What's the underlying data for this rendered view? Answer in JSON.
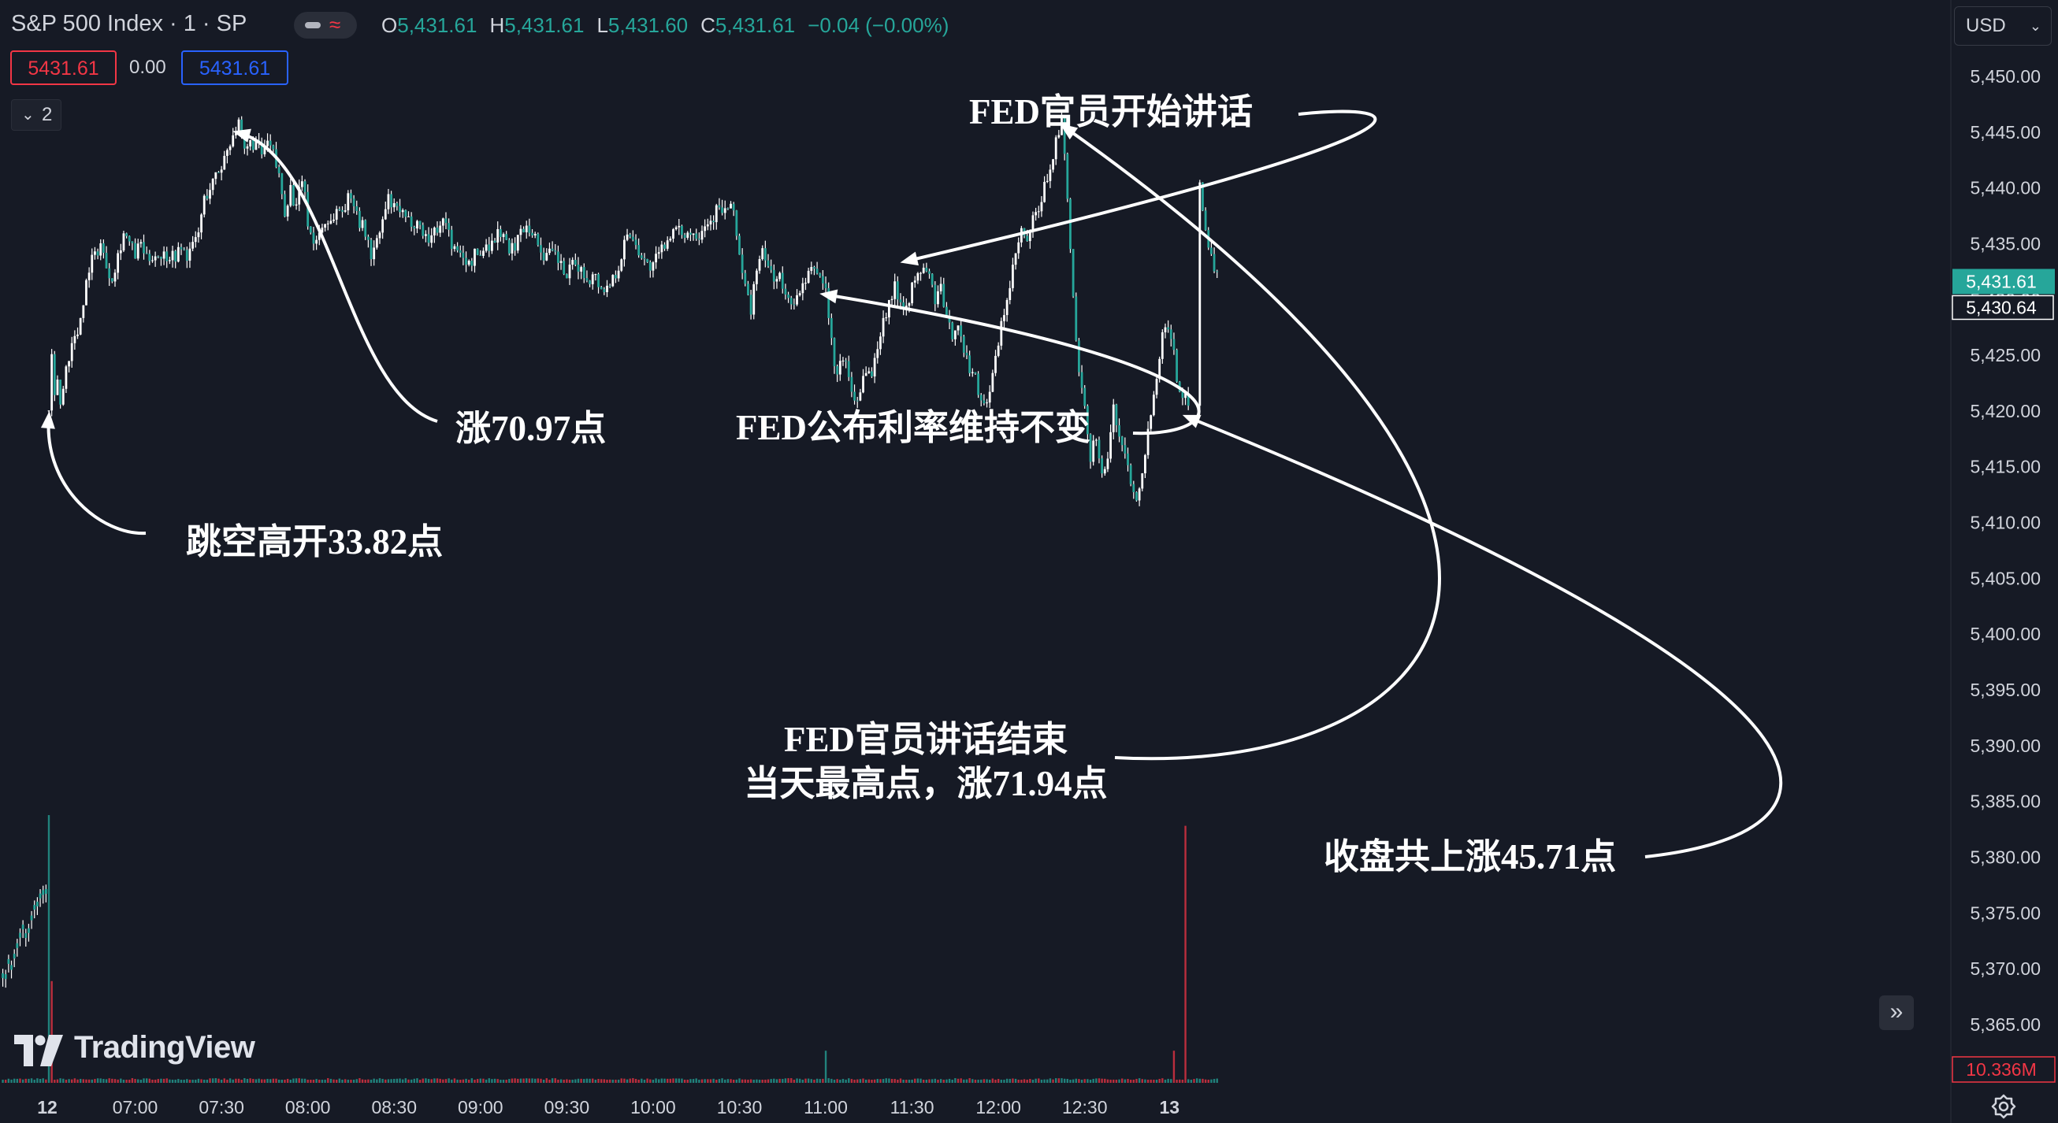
{
  "header": {
    "symbol_title": "S&P 500 Index · 1 · SP",
    "ohlc": {
      "o_label": "O",
      "o": "5,431.61",
      "h_label": "H",
      "h": "5,431.61",
      "l_label": "L",
      "l": "5,431.60",
      "c_label": "C",
      "c": "5,431.61",
      "change": "−0.04 (−0.00%)"
    },
    "sell_price": "5431.61",
    "spread": "0.00",
    "buy_price": "5431.61",
    "indicators_count": "2",
    "currency": "USD"
  },
  "logo_text": "TradingView",
  "colors": {
    "up": "#26a69a",
    "down": "#f23645",
    "candle": "#ffffff",
    "background": "#161a25",
    "label_green": "#26a69a"
  },
  "chart_data": {
    "type": "candlestick",
    "y_axis": {
      "range": [
        5361,
        5452
      ],
      "ticks": [
        "5,450.00",
        "5,445.00",
        "5,440.00",
        "5,435.00",
        "5,430.00",
        "5,425.00",
        "5,420.00",
        "5,415.00",
        "5,410.00",
        "5,405.00",
        "5,400.00",
        "5,395.00",
        "5,390.00",
        "5,385.00",
        "5,380.00",
        "5,375.00",
        "5,370.00",
        "5,365.00"
      ],
      "last_price_label": "5,431.61",
      "prev_price_label": "5,430.64",
      "volume_label": "10.336M"
    },
    "x_axis": {
      "ticks": [
        {
          "label": "12",
          "t": 0,
          "bold": true
        },
        {
          "label": "07:00",
          "t": 30
        },
        {
          "label": "07:30",
          "t": 60
        },
        {
          "label": "08:00",
          "t": 90
        },
        {
          "label": "08:30",
          "t": 120
        },
        {
          "label": "09:00",
          "t": 150
        },
        {
          "label": "09:30",
          "t": 180
        },
        {
          "label": "10:00",
          "t": 210
        },
        {
          "label": "10:30",
          "t": 240
        },
        {
          "label": "11:00",
          "t": 270
        },
        {
          "label": "11:30",
          "t": 300
        },
        {
          "label": "12:00",
          "t": 330
        },
        {
          "label": "12:30",
          "t": 360
        },
        {
          "label": "13",
          "t": 390,
          "bold": true
        }
      ]
    },
    "price_path": [
      [
        0,
        5420
      ],
      [
        1,
        5424.5
      ],
      [
        2,
        5421
      ],
      [
        3,
        5423
      ],
      [
        4,
        5420.5
      ],
      [
        5,
        5422
      ],
      [
        6,
        5424
      ],
      [
        8,
        5426
      ],
      [
        10,
        5427
      ],
      [
        12,
        5430
      ],
      [
        14,
        5433
      ],
      [
        16,
        5434
      ],
      [
        18,
        5435
      ],
      [
        20,
        5433
      ],
      [
        22,
        5432
      ],
      [
        24,
        5434
      ],
      [
        26,
        5436
      ],
      [
        28,
        5435
      ],
      [
        30,
        5434
      ],
      [
        32,
        5435
      ],
      [
        34,
        5433.5
      ],
      [
        36,
        5434
      ],
      [
        38,
        5434
      ],
      [
        40,
        5434
      ],
      [
        42,
        5434
      ],
      [
        44,
        5434
      ],
      [
        46,
        5434.5
      ],
      [
        48,
        5434
      ],
      [
        50,
        5434.7
      ],
      [
        52,
        5436
      ],
      [
        54,
        5439
      ],
      [
        56,
        5440
      ],
      [
        58,
        5441
      ],
      [
        60,
        5442
      ],
      [
        62,
        5443.5
      ],
      [
        64,
        5445
      ],
      [
        66,
        5445.5
      ],
      [
        68,
        5443
      ],
      [
        70,
        5444
      ],
      [
        72,
        5444
      ],
      [
        74,
        5443
      ],
      [
        76,
        5444
      ],
      [
        78,
        5443
      ],
      [
        80,
        5441
      ],
      [
        82,
        5438
      ],
      [
        84,
        5440
      ],
      [
        86,
        5438
      ],
      [
        88,
        5441
      ],
      [
        90,
        5437
      ],
      [
        92,
        5435
      ],
      [
        94,
        5436
      ],
      [
        96,
        5437
      ],
      [
        98,
        5437
      ],
      [
        100,
        5438
      ],
      [
        102,
        5438
      ],
      [
        104,
        5439
      ],
      [
        106,
        5439
      ],
      [
        108,
        5437
      ],
      [
        110,
        5436
      ],
      [
        112,
        5434
      ],
      [
        114,
        5435
      ],
      [
        116,
        5437
      ],
      [
        118,
        5439
      ],
      [
        120,
        5438
      ],
      [
        122,
        5438
      ],
      [
        124,
        5437
      ],
      [
        126,
        5437
      ],
      [
        128,
        5437
      ],
      [
        130,
        5436
      ],
      [
        132,
        5435.5
      ],
      [
        134,
        5436
      ],
      [
        136,
        5437
      ],
      [
        138,
        5437
      ],
      [
        140,
        5435
      ],
      [
        142,
        5434
      ],
      [
        144,
        5434
      ],
      [
        146,
        5433
      ],
      [
        148,
        5434
      ],
      [
        150,
        5434
      ],
      [
        152,
        5435
      ],
      [
        154,
        5435
      ],
      [
        156,
        5436
      ],
      [
        158,
        5436
      ],
      [
        160,
        5434
      ],
      [
        162,
        5435
      ],
      [
        164,
        5436
      ],
      [
        166,
        5437
      ],
      [
        168,
        5436
      ],
      [
        170,
        5435
      ],
      [
        172,
        5434
      ],
      [
        174,
        5434
      ],
      [
        176,
        5434
      ],
      [
        178,
        5433
      ],
      [
        180,
        5432
      ],
      [
        182,
        5433
      ],
      [
        184,
        5433
      ],
      [
        186,
        5432
      ],
      [
        188,
        5432
      ],
      [
        190,
        5432
      ],
      [
        192,
        5431
      ],
      [
        194,
        5431
      ],
      [
        196,
        5432
      ],
      [
        198,
        5433
      ],
      [
        200,
        5435
      ],
      [
        202,
        5436
      ],
      [
        204,
        5435
      ],
      [
        206,
        5434
      ],
      [
        208,
        5433
      ],
      [
        210,
        5433
      ],
      [
        212,
        5434
      ],
      [
        214,
        5435
      ],
      [
        216,
        5436
      ],
      [
        218,
        5436
      ],
      [
        220,
        5436
      ],
      [
        222,
        5436
      ],
      [
        224,
        5436
      ],
      [
        226,
        5436
      ],
      [
        228,
        5437
      ],
      [
        230,
        5437
      ],
      [
        232,
        5438
      ],
      [
        234,
        5438
      ],
      [
        236,
        5438
      ],
      [
        238,
        5438
      ],
      [
        240,
        5434
      ],
      [
        242,
        5431
      ],
      [
        244,
        5429
      ],
      [
        246,
        5433
      ],
      [
        248,
        5434
      ],
      [
        250,
        5433
      ],
      [
        252,
        5432
      ],
      [
        254,
        5432
      ],
      [
        256,
        5430
      ],
      [
        258,
        5430
      ],
      [
        260,
        5430
      ],
      [
        262,
        5431
      ],
      [
        264,
        5432
      ],
      [
        266,
        5433
      ],
      [
        268,
        5432
      ],
      [
        270,
        5431
      ],
      [
        272,
        5426
      ],
      [
        274,
        5423
      ],
      [
        276,
        5425
      ],
      [
        278,
        5423
      ],
      [
        280,
        5421
      ],
      [
        282,
        5422
      ],
      [
        284,
        5424
      ],
      [
        286,
        5423
      ],
      [
        288,
        5426
      ],
      [
        290,
        5428
      ],
      [
        292,
        5430
      ],
      [
        294,
        5431
      ],
      [
        296,
        5430
      ],
      [
        298,
        5429.5
      ],
      [
        300,
        5431
      ],
      [
        302,
        5432
      ],
      [
        304,
        5433
      ],
      [
        306,
        5432
      ],
      [
        308,
        5430
      ],
      [
        310,
        5431
      ],
      [
        312,
        5428
      ],
      [
        314,
        5427
      ],
      [
        316,
        5428
      ],
      [
        318,
        5425
      ],
      [
        320,
        5424
      ],
      [
        322,
        5423
      ],
      [
        324,
        5421
      ],
      [
        326,
        5421
      ],
      [
        328,
        5423
      ],
      [
        330,
        5426
      ],
      [
        332,
        5429
      ],
      [
        334,
        5431
      ],
      [
        336,
        5434
      ],
      [
        338,
        5436
      ],
      [
        340,
        5435
      ],
      [
        342,
        5437
      ],
      [
        344,
        5438
      ],
      [
        346,
        5440
      ],
      [
        348,
        5442
      ],
      [
        350,
        5444
      ],
      [
        352,
        5446
      ],
      [
        354,
        5439
      ],
      [
        356,
        5430
      ],
      [
        358,
        5423
      ],
      [
        360,
        5420
      ],
      [
        362,
        5416
      ],
      [
        364,
        5418
      ],
      [
        366,
        5414
      ],
      [
        368,
        5416
      ],
      [
        370,
        5420
      ],
      [
        372,
        5418
      ],
      [
        374,
        5416
      ],
      [
        376,
        5414
      ],
      [
        378,
        5412
      ],
      [
        380,
        5415
      ],
      [
        382,
        5418
      ],
      [
        384,
        5422
      ],
      [
        386,
        5425
      ],
      [
        388,
        5428
      ],
      [
        390,
        5427
      ],
      [
        392,
        5423
      ],
      [
        394,
        5421
      ],
      [
        396,
        5421
      ],
      [
        400,
        5441
      ],
      [
        402,
        5436
      ],
      [
        404,
        5434
      ],
      [
        406,
        5432
      ]
    ],
    "volume": {
      "baseline": 0.18,
      "spikes": [
        {
          "t": 0,
          "value": 1.0
        },
        {
          "t": 1,
          "value": 0.38
        },
        {
          "t": 395,
          "value": 0.96
        },
        {
          "t": 391,
          "value": 0.12
        },
        {
          "t": 270,
          "value": 0.12
        }
      ]
    },
    "annotations": [
      {
        "lines": [
          "跳空高开33.82点"
        ],
        "arrow_to": [
          0,
          5420
        ]
      },
      {
        "lines": [
          "涨70.97点"
        ],
        "arrow_to": [
          66,
          5445.5
        ]
      },
      {
        "lines": [
          "FED公布利率维持不变"
        ],
        "arrow_to": [
          270,
          5431
        ]
      },
      {
        "lines": [
          "FED官员开始讲话"
        ],
        "arrow_to": [
          298,
          5434
        ]
      },
      {
        "lines": [
          "FED官员讲话结束",
          "当天最高点，涨71.94点"
        ],
        "arrow_to": [
          352,
          5446
        ]
      },
      {
        "lines": [
          "收盘共上涨45.71点"
        ],
        "arrow_to": [
          396,
          5420
        ]
      }
    ]
  }
}
